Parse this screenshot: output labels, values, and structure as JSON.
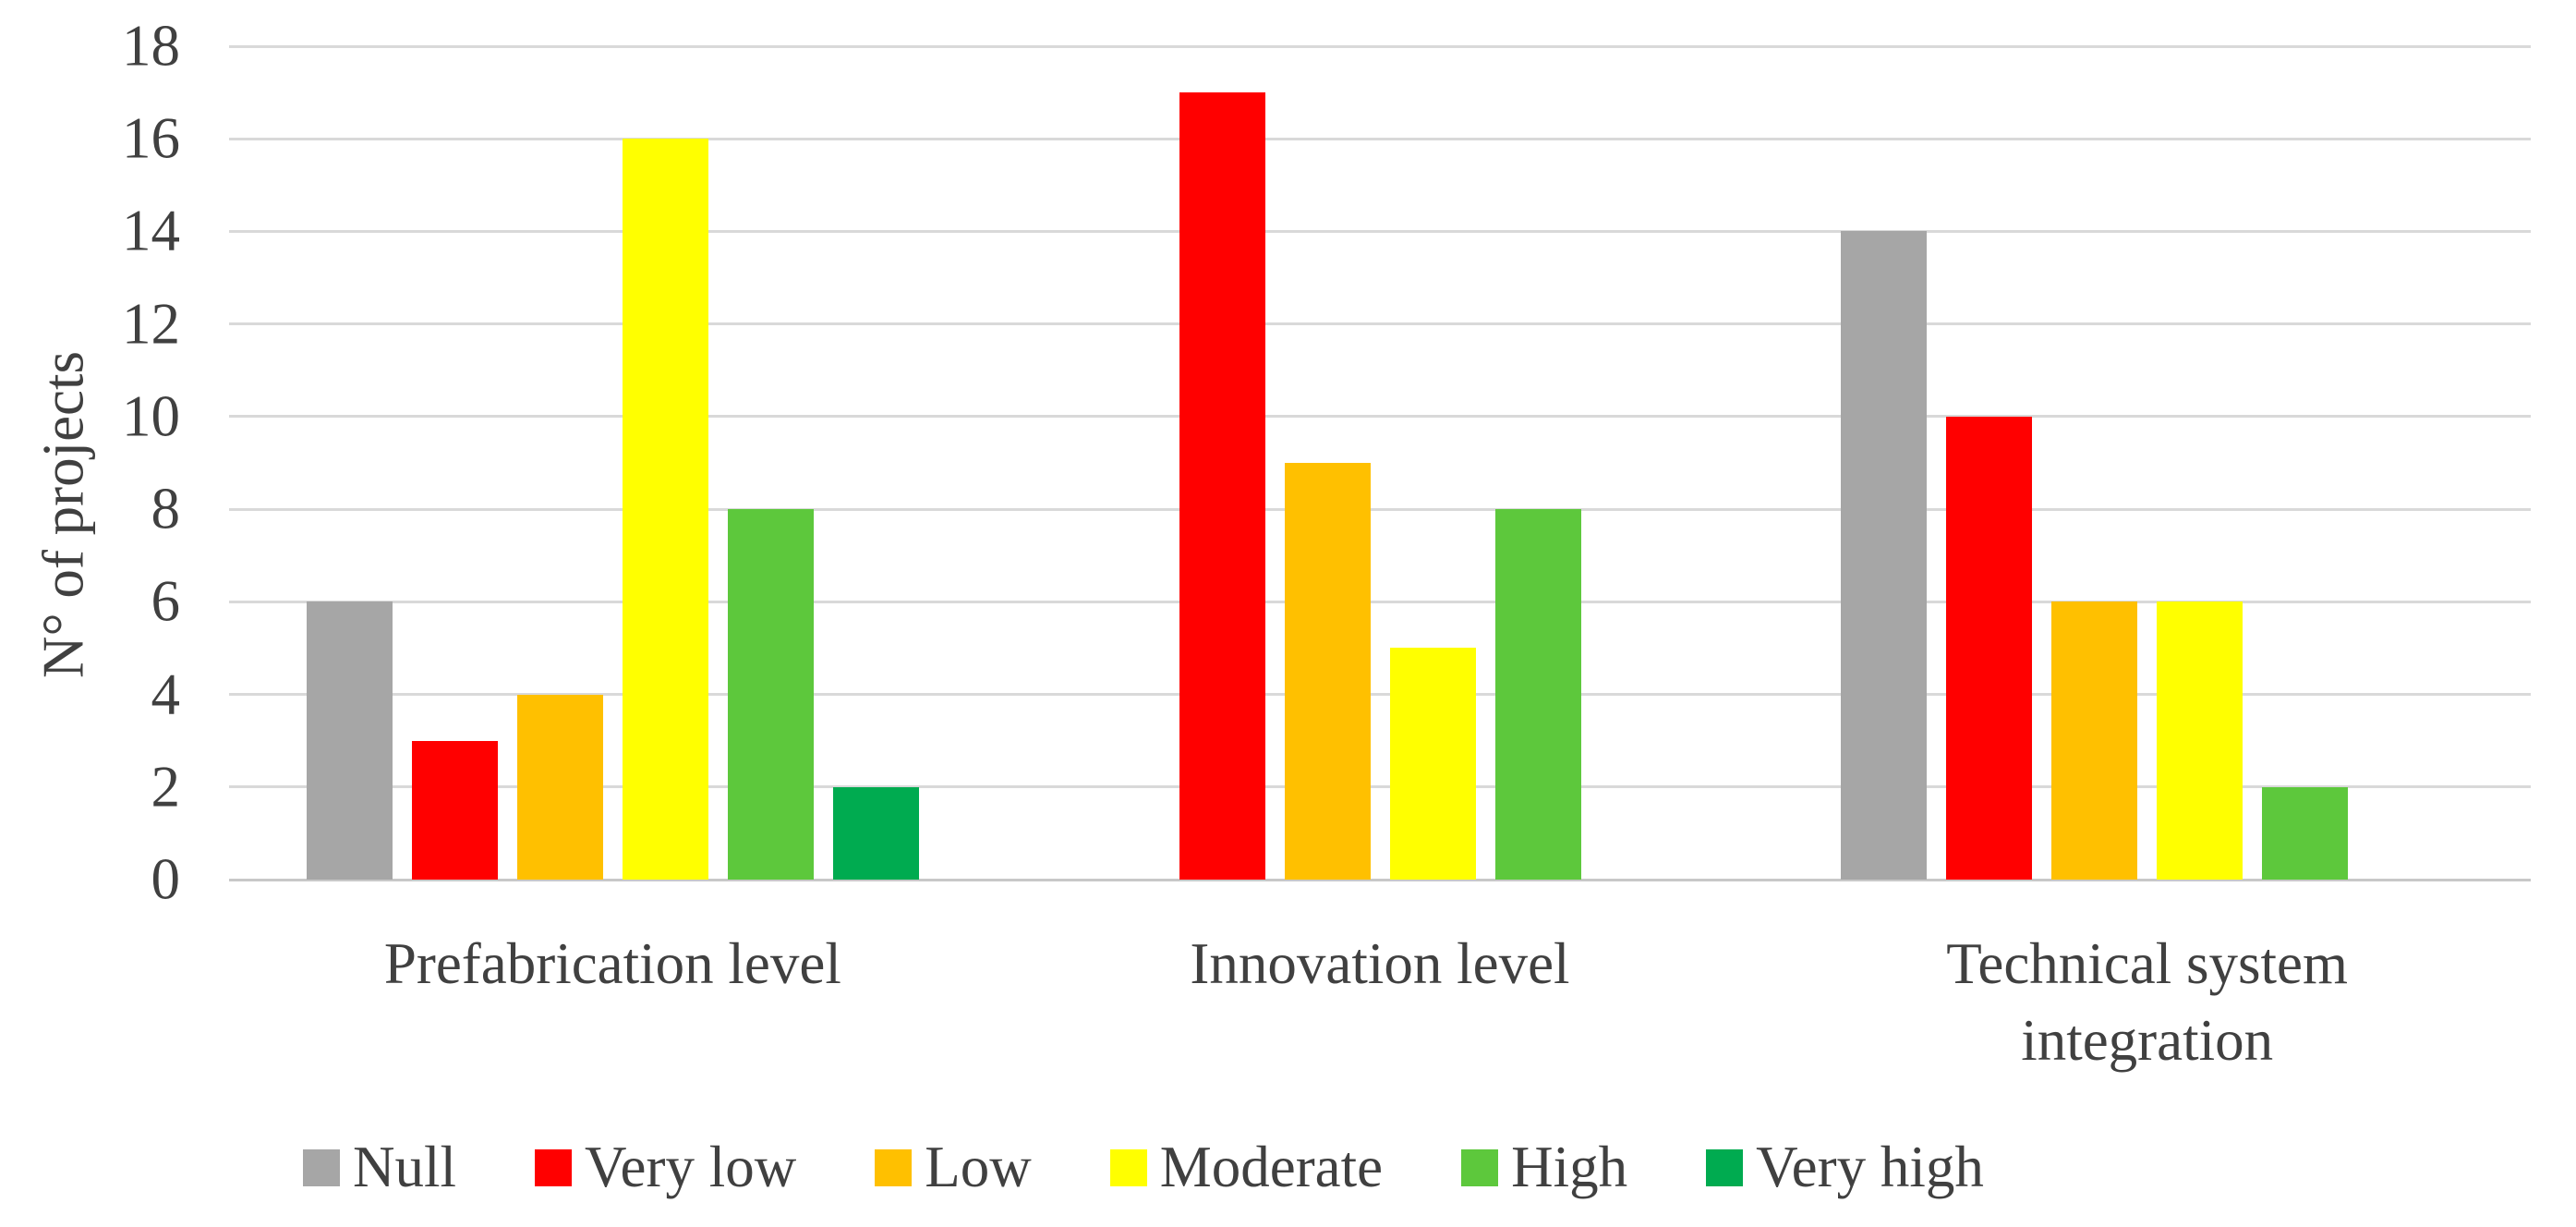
{
  "figure": {
    "background_color": "#FFFFFF",
    "text_color": "#404040",
    "gridline_color": "#D9D9D9",
    "axis_line_color": "#C8C8C8"
  },
  "chart_data": {
    "type": "bar",
    "title": "",
    "xlabel": "",
    "ylabel": "N° of projects",
    "categories": [
      "Prefabrication level",
      "Innovation level",
      "Technical system integration"
    ],
    "series": [
      {
        "name": "Null",
        "color": "#A6A6A6",
        "values": [
          6,
          0,
          14
        ]
      },
      {
        "name": "Very low",
        "color": "#FF0000",
        "values": [
          3,
          17,
          10
        ]
      },
      {
        "name": "Low",
        "color": "#FFC000",
        "values": [
          4,
          9,
          6
        ]
      },
      {
        "name": "Moderate",
        "color": "#FFFF00",
        "values": [
          16,
          5,
          6
        ]
      },
      {
        "name": "High",
        "color": "#5DC83C",
        "values": [
          8,
          8,
          2
        ]
      },
      {
        "name": "Very high",
        "color": "#00AB50",
        "values": [
          2,
          0,
          0
        ]
      }
    ],
    "ylim": [
      0,
      18
    ],
    "yticks": [
      0,
      2,
      4,
      6,
      8,
      10,
      12,
      14,
      16,
      18
    ],
    "grid": true,
    "legend_position": "bottom"
  }
}
